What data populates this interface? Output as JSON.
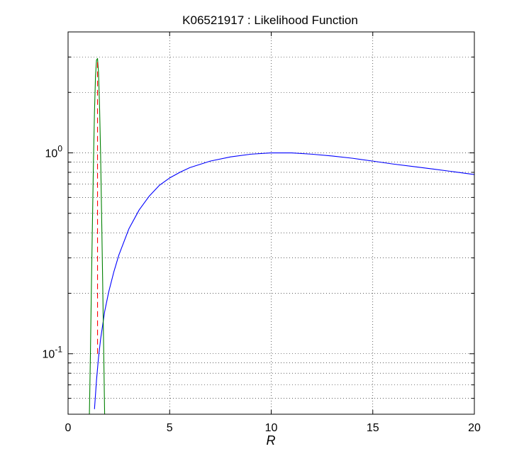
{
  "chart_data": {
    "type": "line",
    "title": "K06521917 : Likelihood Function",
    "xlabel": "R",
    "ylabel": "",
    "xlim": [
      0,
      20
    ],
    "ylim": [
      0.05,
      4
    ],
    "yscale": "log",
    "grid": true,
    "x_ticks": [
      "0",
      "5",
      "10",
      "15",
      "20"
    ],
    "y_ticks": [
      {
        "base": "10",
        "exp": "0",
        "value": 1
      },
      {
        "base": "10",
        "exp": "-1",
        "value": 0.1
      }
    ],
    "series": [
      {
        "color": "#0000ff",
        "style": "solid",
        "x": [
          1.3,
          1.4,
          1.5,
          1.6,
          1.8,
          2.0,
          2.25,
          2.5,
          3.0,
          3.5,
          4.0,
          4.5,
          5.0,
          5.5,
          6.0,
          7.0,
          8.0,
          9.0,
          10.0,
          11.0,
          12.0,
          13.0,
          14.0,
          15.0,
          16.0,
          17.0,
          18.0,
          19.0,
          20.0
        ],
        "y": [
          0.053,
          0.074,
          0.096,
          0.118,
          0.162,
          0.203,
          0.255,
          0.31,
          0.42,
          0.52,
          0.61,
          0.69,
          0.75,
          0.8,
          0.845,
          0.91,
          0.955,
          0.985,
          1.0,
          1.0,
          0.985,
          0.965,
          0.94,
          0.91,
          0.88,
          0.855,
          0.83,
          0.805,
          0.78
        ]
      },
      {
        "color": "#008000",
        "style": "solid",
        "x": [
          1.05,
          1.1,
          1.15,
          1.2,
          1.25,
          1.3,
          1.35,
          1.4,
          1.45,
          1.5,
          1.55,
          1.6,
          1.65,
          1.7,
          1.75,
          1.8,
          1.85
        ],
        "y": [
          0.05,
          0.1,
          0.22,
          0.45,
          0.9,
          1.6,
          2.4,
          2.9,
          2.95,
          2.5,
          1.7,
          1.0,
          0.5,
          0.24,
          0.11,
          0.05,
          0.03
        ]
      },
      {
        "color": "#ff0000",
        "style": "dashed",
        "x": [
          1.45,
          1.45
        ],
        "y": [
          0.1,
          2.9
        ]
      }
    ]
  }
}
